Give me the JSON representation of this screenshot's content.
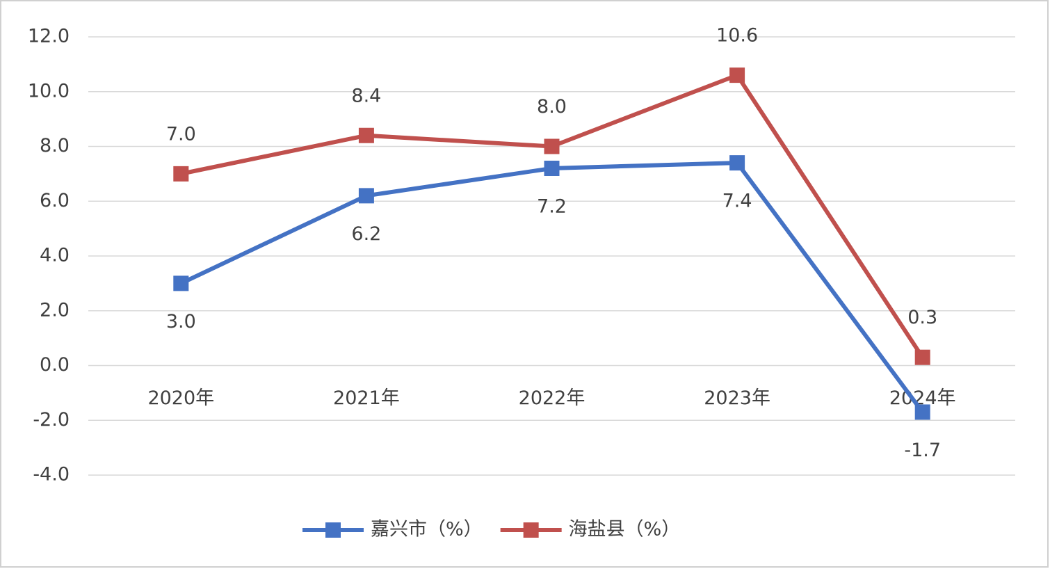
{
  "chart_data": {
    "type": "line",
    "categories": [
      "2020年",
      "2021年",
      "2022年",
      "2023年",
      "2024年"
    ],
    "series": [
      {
        "name": "嘉兴市（%）",
        "color": "#4472c4",
        "values": [
          3.0,
          6.2,
          7.2,
          7.4,
          -1.7
        ],
        "value_labels": [
          "3.0",
          "6.2",
          "7.2",
          "7.4",
          "-1.7"
        ],
        "label_position": "below"
      },
      {
        "name": "海盐县（%）",
        "color": "#c0504d",
        "values": [
          7.0,
          8.4,
          8.0,
          10.6,
          0.3
        ],
        "value_labels": [
          "7.0",
          "8.4",
          "8.0",
          "10.6",
          "0.3"
        ],
        "label_position": "above"
      }
    ],
    "ylim": [
      -4,
      12
    ],
    "yticks": [
      {
        "value": -4,
        "label": "-4.0"
      },
      {
        "value": -2,
        "label": "-2.0"
      },
      {
        "value": 0,
        "label": "0.0"
      },
      {
        "value": 2,
        "label": "2.0"
      },
      {
        "value": 4,
        "label": "4.0"
      },
      {
        "value": 6,
        "label": "6.0"
      },
      {
        "value": 8,
        "label": "8.0"
      },
      {
        "value": 10,
        "label": "10.0"
      },
      {
        "value": 12,
        "label": "12.0"
      }
    ],
    "grid": true,
    "legend": "bottom"
  }
}
